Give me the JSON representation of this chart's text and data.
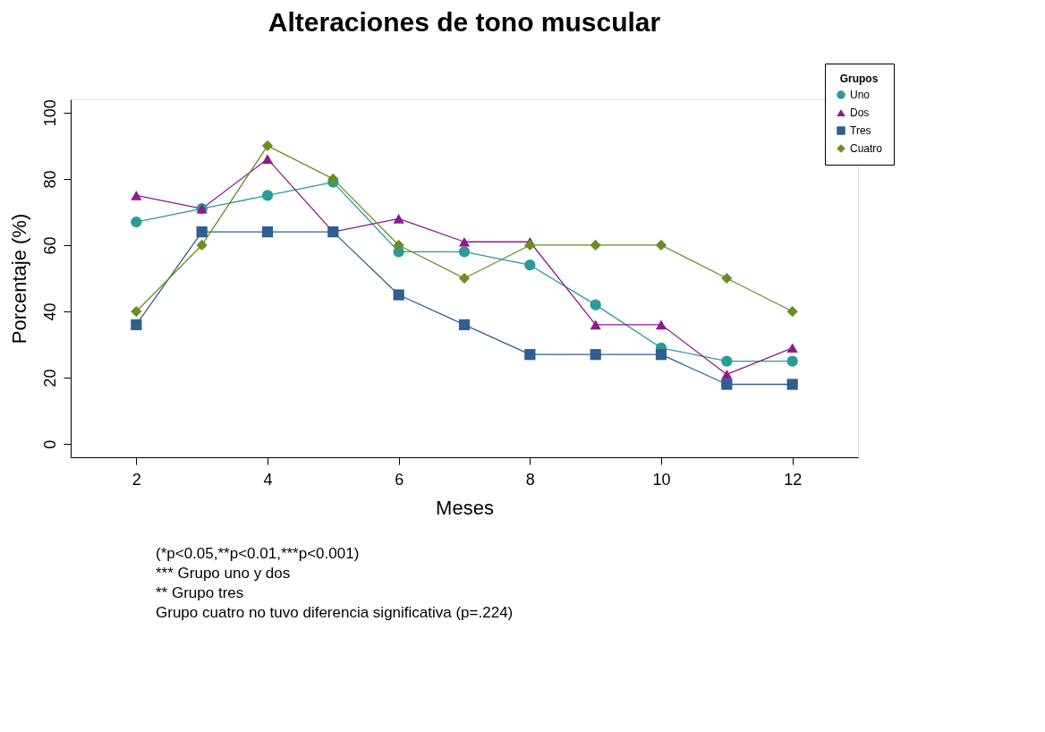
{
  "chart_data": {
    "type": "line",
    "title": "Alteraciones de tono muscular",
    "xlabel": "Meses",
    "ylabel": "Porcentaje (%)",
    "legend_title": "Grupos",
    "x": [
      2,
      3,
      4,
      5,
      6,
      7,
      8,
      9,
      10,
      11,
      12
    ],
    "series": [
      {
        "name": "Uno",
        "color": "#2a9a9a",
        "marker": "circle",
        "values": [
          67,
          71,
          75,
          79,
          58,
          58,
          54,
          42,
          29,
          25,
          25
        ]
      },
      {
        "name": "Dos",
        "color": "#8e1b8e",
        "marker": "triangle",
        "values": [
          75,
          71,
          86,
          64,
          68,
          61,
          61,
          36,
          36,
          21,
          29
        ]
      },
      {
        "name": "Tres",
        "color": "#2f5f8f",
        "marker": "square",
        "values": [
          36,
          64,
          64,
          64,
          45,
          36,
          27,
          27,
          27,
          18,
          18
        ]
      },
      {
        "name": "Cuatro",
        "color": "#6b8e23",
        "marker": "diamond",
        "values": [
          40,
          60,
          90,
          80,
          60,
          50,
          60,
          60,
          60,
          50,
          40
        ]
      }
    ],
    "xlim": [
      1,
      13
    ],
    "xticks": [
      2,
      4,
      6,
      8,
      10,
      12
    ],
    "ylim": [
      -4,
      104
    ],
    "yticks": [
      0,
      20,
      40,
      60,
      80,
      100
    ],
    "grid": false,
    "legend": "top right",
    "line_style": "solid",
    "annotations": [
      "(*p<0.05,**p<0.01,***p<0.001)",
      "*** Grupo uno y dos",
      " ** Grupo tres",
      "Grupo cuatro no tuvo diferencia significativa (p=.224)"
    ]
  }
}
